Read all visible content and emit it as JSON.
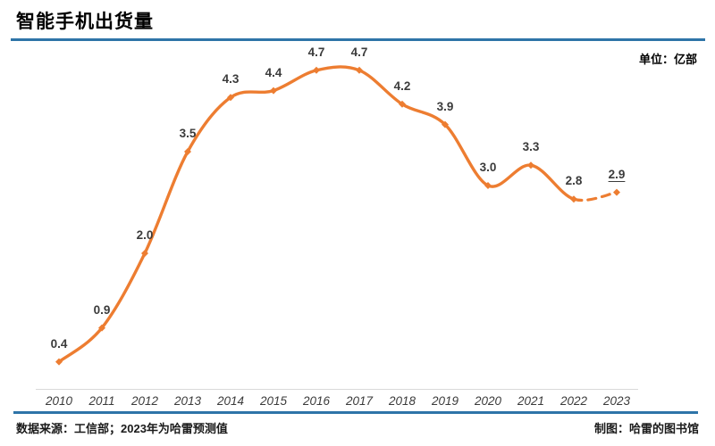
{
  "header": {
    "title": "智能手机出货量",
    "unit_label": "单位：亿部"
  },
  "footer": {
    "source": "数据来源：工信部；2023年为哈雷预测值",
    "credit": "制图：哈雷的图书馆"
  },
  "colors": {
    "line_orange": "#ed7d31",
    "accent_blue": "#2e74a8",
    "label_text": "#3b3b3b",
    "axis_gray": "#d9d9d9"
  },
  "chart_data": {
    "type": "line",
    "title": "智能手机出货量",
    "unit": "亿部",
    "categories": [
      "2010",
      "2011",
      "2012",
      "2013",
      "2014",
      "2015",
      "2016",
      "2017",
      "2018",
      "2019",
      "2020",
      "2021",
      "2022",
      "2023"
    ],
    "series": [
      {
        "name": "智能手机出货量",
        "values": [
          0.4,
          0.9,
          2.0,
          3.5,
          4.3,
          4.4,
          4.7,
          4.7,
          4.2,
          3.9,
          3.0,
          3.3,
          2.8,
          2.9
        ]
      }
    ],
    "point_labels": [
      "0.4",
      "0.9",
      "2.0",
      "3.5",
      "4.3",
      "4.4",
      "4.7",
      "4.7",
      "4.2",
      "3.9",
      "3.0",
      "3.3",
      "2.8",
      "2.9"
    ],
    "dashed_from_index": 12,
    "underlined_label_index": 13,
    "smooth": true,
    "markers": "diamond",
    "xlabel": "",
    "ylabel": "",
    "ylim": [
      0,
      5
    ],
    "grid": false,
    "legend": "none",
    "note": "2022-2023 segment dashed (forecast)"
  }
}
